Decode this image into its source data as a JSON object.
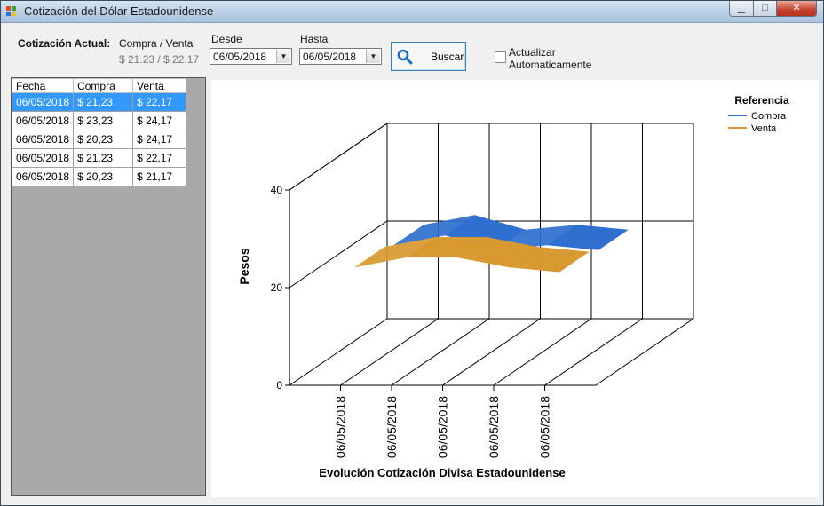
{
  "window": {
    "title": "Cotización del Dólar Estadounidense"
  },
  "header": {
    "current_label": "Cotización Actual:",
    "compra_venta_label": "Compra / Venta",
    "compra_venta_value": "$ 21.23 / $ 22.17",
    "desde_label": "Desde",
    "desde_value": "06/05/2018",
    "hasta_label": "Hasta",
    "hasta_value": "06/05/2018",
    "buscar_label": "Buscar",
    "auto_update_line1": "Actualizar",
    "auto_update_line2": "Automaticamente",
    "auto_update_checked": false
  },
  "table": {
    "columns": [
      "Fecha",
      "Compra",
      "Venta"
    ],
    "rows": [
      [
        "06/05/2018",
        "$ 21,23",
        "$ 22,17"
      ],
      [
        "06/05/2018",
        "$ 23,23",
        "$ 24,17"
      ],
      [
        "06/05/2018",
        "$ 20,23",
        "$ 24,17"
      ],
      [
        "06/05/2018",
        "$ 21,23",
        "$ 22,17"
      ],
      [
        "06/05/2018",
        "$ 20,23",
        "$ 21,17"
      ]
    ],
    "selected_row": 0
  },
  "chart_data": {
    "type": "area",
    "title": "Evolución Cotización Divisa Estadounidense",
    "xlabel": "",
    "ylabel": "Pesos",
    "categories": [
      "06/05/2018",
      "06/05/2018",
      "06/05/2018",
      "06/05/2018",
      "06/05/2018"
    ],
    "series": [
      {
        "name": "Compra",
        "color": "#2f6fcf",
        "values": [
          21.23,
          23.23,
          20.23,
          21.23,
          20.23
        ]
      },
      {
        "name": "Venta",
        "color": "#d89a30",
        "values": [
          22.17,
          24.17,
          24.17,
          22.17,
          21.17
        ]
      }
    ],
    "yticks": [
      0,
      20,
      40
    ],
    "ylim": [
      0,
      40
    ],
    "legend_title": "Referencia",
    "legend_position": "top-right",
    "grid": true,
    "style": "3d"
  }
}
